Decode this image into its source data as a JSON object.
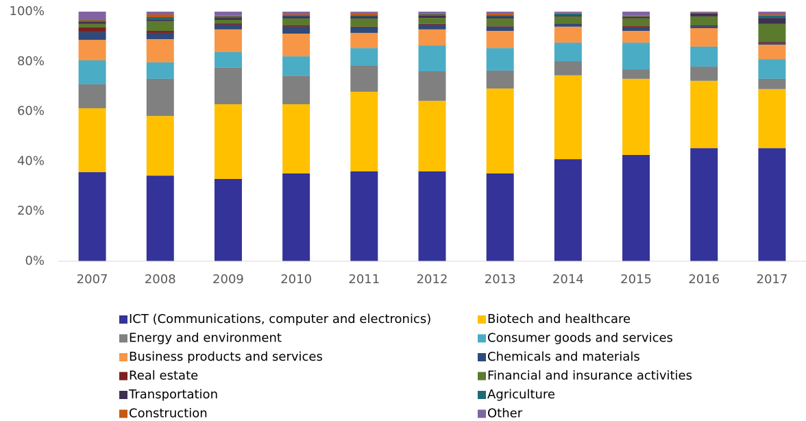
{
  "chart_data": {
    "type": "stacked_bar",
    "categories": [
      "2007",
      "2008",
      "2009",
      "2010",
      "2011",
      "2012",
      "2013",
      "2014",
      "2015",
      "2016",
      "2017"
    ],
    "ylim": [
      0,
      100
    ],
    "yticks": [
      {
        "value": 0,
        "label": "0%"
      },
      {
        "value": 20,
        "label": "20%"
      },
      {
        "value": 40,
        "label": "40%"
      },
      {
        "value": 60,
        "label": "60%"
      },
      {
        "value": 80,
        "label": "80%"
      },
      {
        "value": 100,
        "label": "100%"
      }
    ],
    "grid": false,
    "legend": "bottom",
    "series": [
      {
        "name": "ICT (Communications, computer and electronics)",
        "color": "#333399",
        "values": [
          35.7,
          34.3,
          33.0,
          35.2,
          36.0,
          36.0,
          35.2,
          40.9,
          42.6,
          45.3,
          45.3
        ]
      },
      {
        "name": "Biotech and healthcare",
        "color": "#ffc000",
        "values": [
          25.6,
          23.9,
          29.9,
          27.7,
          31.9,
          28.3,
          34.0,
          33.6,
          30.5,
          27.0,
          23.7
        ]
      },
      {
        "name": "Energy and environment",
        "color": "#808080",
        "values": [
          9.6,
          14.9,
          14.6,
          11.3,
          10.4,
          11.8,
          7.2,
          5.7,
          3.8,
          5.7,
          4.1
        ]
      },
      {
        "name": "Consumer goods and services",
        "color": "#4bacc6",
        "values": [
          9.6,
          6.6,
          6.3,
          7.9,
          7.1,
          10.4,
          9.0,
          7.4,
          10.7,
          8.0,
          7.9
        ]
      },
      {
        "name": "Business products and services",
        "color": "#f79646",
        "values": [
          8.2,
          9.3,
          9.1,
          9.1,
          6.1,
          6.4,
          6.9,
          6.4,
          4.7,
          7.4,
          5.8
        ]
      },
      {
        "name": "Chemicals and materials",
        "color": "#2e4a7a",
        "values": [
          3.1,
          2.5,
          1.9,
          2.8,
          2.2,
          1.9,
          1.7,
          1.1,
          1.4,
          0.8,
          0.8
        ]
      },
      {
        "name": "Real estate",
        "color": "#7b2020",
        "values": [
          1.9,
          0.8,
          0.5,
          0.5,
          0.3,
          0.3,
          0.2,
          0.2,
          0.5,
          0.3,
          0.3
        ]
      },
      {
        "name": "Financial and insurance activities",
        "color": "#5b7a2e",
        "values": [
          1.4,
          3.9,
          1.4,
          2.8,
          3.3,
          2.4,
          3.1,
          2.8,
          3.1,
          3.6,
          7.2
        ]
      },
      {
        "name": "Transportation",
        "color": "#3f3151",
        "values": [
          0.8,
          0.5,
          0.8,
          0.8,
          0.8,
          0.9,
          0.8,
          0.5,
          0.5,
          1.1,
          2.4
        ]
      },
      {
        "name": "Agriculture",
        "color": "#1f6b75",
        "values": [
          0.5,
          1.1,
          0.6,
          0.5,
          0.5,
          0.5,
          0.5,
          0.6,
          0.3,
          0.3,
          0.9
        ]
      },
      {
        "name": "Construction",
        "color": "#c55a11",
        "values": [
          0.3,
          1.1,
          0.3,
          0.3,
          0.9,
          0.3,
          0.6,
          0.3,
          0.3,
          0.1,
          0.5
        ]
      },
      {
        "name": "Other",
        "color": "#8064a2",
        "values": [
          3.3,
          1.1,
          1.6,
          1.1,
          0.5,
          0.8,
          0.8,
          0.5,
          1.6,
          0.4,
          1.1
        ]
      }
    ]
  }
}
